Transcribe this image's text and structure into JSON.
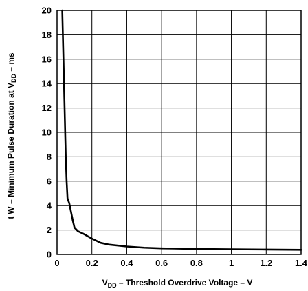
{
  "chart_data": {
    "type": "line",
    "title": "",
    "xlabel": {
      "main": "V",
      "sub": "DD",
      "rest": " – Threshold Overdrive Voltage – V"
    },
    "ylabel": {
      "p1": "t",
      "p2": "W",
      "p3": " – Minimum Pulse Duration at V",
      "p4": "DD",
      "p5": " – ms"
    },
    "xlim": [
      0,
      1.4
    ],
    "ylim": [
      0,
      20
    ],
    "xticks": [
      "0",
      "0.2",
      "0.4",
      "0.6",
      "0.8",
      "1",
      "1.2",
      "1.4"
    ],
    "yticks": [
      "0",
      "2",
      "4",
      "6",
      "8",
      "10",
      "12",
      "14",
      "16",
      "18",
      "20"
    ],
    "xtick_values": [
      0,
      0.2,
      0.4,
      0.6,
      0.8,
      1.0,
      1.2,
      1.4
    ],
    "ytick_values": [
      0,
      2,
      4,
      6,
      8,
      10,
      12,
      14,
      16,
      18,
      20
    ],
    "grid": true,
    "series": [
      {
        "x": [
          0.03,
          0.035,
          0.04,
          0.045,
          0.05,
          0.055,
          0.06,
          0.07,
          0.08,
          0.09,
          0.1,
          0.12,
          0.15,
          0.2,
          0.25,
          0.3,
          0.4,
          0.5,
          0.6,
          0.8,
          1.0,
          1.2,
          1.4
        ],
        "y": [
          20,
          17,
          14,
          11,
          8,
          6,
          4.6,
          4.2,
          3.5,
          2.8,
          2.2,
          1.9,
          1.7,
          1.3,
          0.95,
          0.8,
          0.65,
          0.55,
          0.5,
          0.45,
          0.42,
          0.4,
          0.38
        ]
      }
    ]
  }
}
